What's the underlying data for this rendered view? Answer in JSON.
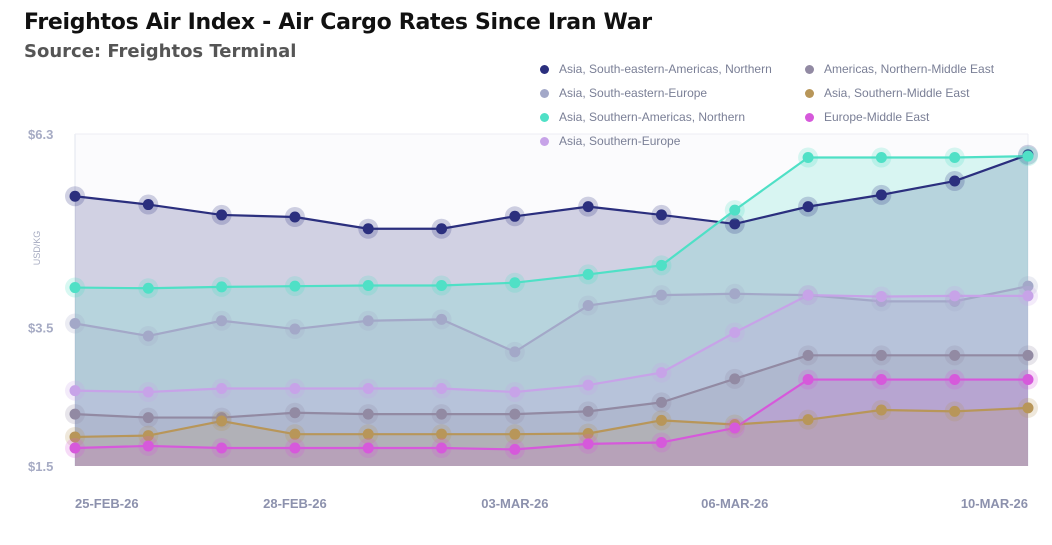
{
  "title": "Freightos Air Index - Air Cargo Rates Since Iran War",
  "subtitle": "Source: Freightos Terminal",
  "chart_data": {
    "type": "area",
    "ylabel": "USD/KG",
    "ylim": [
      1.5,
      6.3
    ],
    "yticks": [
      "$6.3",
      "$3.5",
      "$1.5"
    ],
    "ytick_values": [
      6.3,
      3.5,
      1.5
    ],
    "x": [
      "25-FEB-26",
      "26-FEB-26",
      "27-FEB-26",
      "28-FEB-26",
      "01-MAR-26",
      "02-MAR-26",
      "03-MAR-26",
      "04-MAR-26",
      "05-MAR-26",
      "06-MAR-26",
      "07-MAR-26",
      "08-MAR-26",
      "09-MAR-26",
      "10-MAR-26"
    ],
    "xtick_labels": [
      "25-FEB-26",
      "28-FEB-26",
      "03-MAR-26",
      "06-MAR-26",
      "10-MAR-26"
    ],
    "xtick_indices": [
      0,
      3,
      6,
      9,
      13
    ],
    "legend_position": "top-right",
    "series": [
      {
        "name": "Asia, South-eastern-Americas, Northern",
        "color": "#2b2f7e",
        "values": [
          5.4,
          5.28,
          5.13,
          5.1,
          4.93,
          4.93,
          5.11,
          5.25,
          5.13,
          5.0,
          5.25,
          5.42,
          5.62,
          6.0
        ]
      },
      {
        "name": "Asia, South-eastern-Europe",
        "color": "#a3a8c8",
        "values": [
          3.56,
          3.38,
          3.6,
          3.48,
          3.6,
          3.62,
          3.15,
          3.82,
          3.97,
          3.99,
          3.97,
          3.88,
          3.88,
          4.1
        ]
      },
      {
        "name": "Asia, Southern-Americas, Northern",
        "color": "#4fe0c6",
        "values": [
          4.08,
          4.07,
          4.09,
          4.1,
          4.11,
          4.11,
          4.15,
          4.27,
          4.4,
          5.2,
          5.96,
          5.96,
          5.96,
          5.98
        ]
      },
      {
        "name": "Asia, Southern-Europe",
        "color": "#c7a3e8",
        "values": [
          2.59,
          2.57,
          2.62,
          2.62,
          2.62,
          2.62,
          2.57,
          2.67,
          2.85,
          3.43,
          3.97,
          3.95,
          3.96,
          3.96
        ]
      },
      {
        "name": "Americas, Northern-Middle East",
        "color": "#928aa3",
        "values": [
          2.25,
          2.2,
          2.2,
          2.27,
          2.25,
          2.25,
          2.25,
          2.29,
          2.42,
          2.76,
          3.1,
          3.1,
          3.1,
          3.1
        ]
      },
      {
        "name": "Asia, Southern-Middle East",
        "color": "#b89659",
        "values": [
          1.92,
          1.94,
          2.15,
          1.96,
          1.96,
          1.96,
          1.96,
          1.97,
          2.16,
          2.1,
          2.17,
          2.31,
          2.29,
          2.34
        ]
      },
      {
        "name": "Europe-Middle East",
        "color": "#d659db",
        "values": [
          1.76,
          1.79,
          1.76,
          1.76,
          1.76,
          1.76,
          1.74,
          1.82,
          1.84,
          2.05,
          2.75,
          2.75,
          2.75,
          2.75
        ]
      }
    ]
  }
}
